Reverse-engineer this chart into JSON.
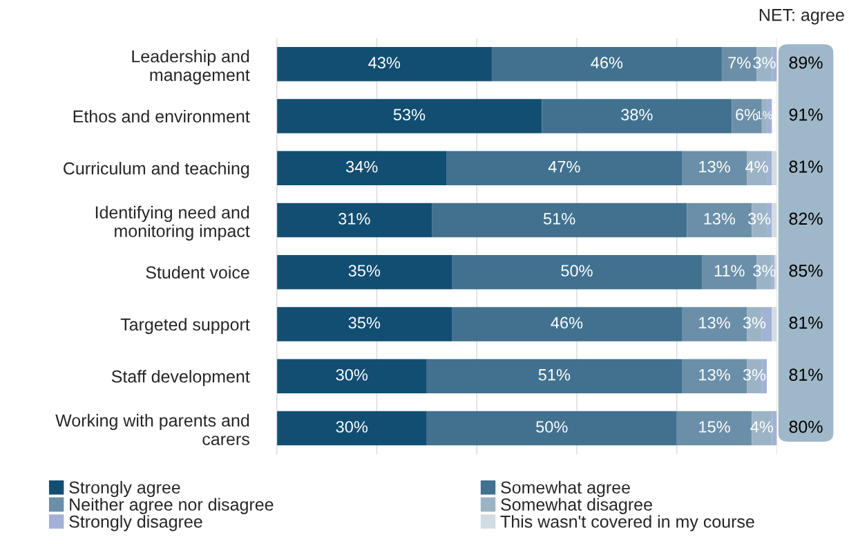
{
  "chart_data": {
    "type": "bar",
    "orientation": "horizontal",
    "stacked": true,
    "categories": [
      "Leadership and\nmanagement",
      "Ethos and environment",
      "Curriculum and teaching",
      "Identifying need and\nmonitoring impact",
      "Student voice",
      "Targeted support",
      "Staff development",
      "Working with parents and\ncarers"
    ],
    "series": [
      {
        "name": "Strongly agree",
        "color": "#124e72",
        "values": [
          43,
          53,
          34,
          31,
          35,
          35,
          30,
          30
        ],
        "value_labels": [
          "43%",
          "53%",
          "34%",
          "31%",
          "35%",
          "35%",
          "30%",
          "30%"
        ]
      },
      {
        "name": "Somewhat agree",
        "color": "#41718f",
        "values": [
          46,
          38,
          47,
          51,
          50,
          46,
          51,
          50
        ],
        "value_labels": [
          "46%",
          "38%",
          "47%",
          "51%",
          "50%",
          "46%",
          "51%",
          "50%"
        ]
      },
      {
        "name": "Neither agree nor disagree",
        "color": "#6b8fa8",
        "values": [
          7,
          6,
          13,
          13,
          11,
          13,
          13,
          15
        ],
        "value_labels": [
          "7%",
          "6%",
          "13%",
          "13%",
          "11%",
          "13%",
          "13%",
          "15%"
        ]
      },
      {
        "name": "Somewhat disagree",
        "color": "#9bb4c5",
        "values": [
          3,
          1,
          4,
          3,
          3,
          3,
          3,
          4
        ],
        "value_labels": [
          "3%",
          "1%",
          "4%",
          "3%",
          "3%",
          "3%",
          "3%",
          "4%"
        ]
      },
      {
        "name": "Strongly disagree",
        "color": "#a2b1d6",
        "values": [
          1,
          1,
          1,
          1,
          0.5,
          2,
          1,
          1
        ],
        "value_labels": [
          null,
          null,
          null,
          null,
          null,
          null,
          null,
          null
        ]
      },
      {
        "name": "This wasn't covered in my course",
        "color": "#d1dce3",
        "values": [
          0,
          0,
          1,
          1,
          0.5,
          1,
          0,
          0
        ],
        "value_labels": [
          null,
          null,
          null,
          null,
          null,
          null,
          null,
          null
        ]
      }
    ],
    "xlim": [
      0,
      100
    ],
    "xticks": [
      {
        "value": 0,
        "label": null
      },
      {
        "value": 20,
        "label": null
      },
      {
        "value": 40,
        "label": null
      },
      {
        "value": 60,
        "label": null
      },
      {
        "value": 80,
        "label": null
      },
      {
        "value": 100,
        "label": null
      }
    ],
    "grid": "x",
    "legend": "bottom",
    "annotations": [
      "NET: agree",
      "89%",
      "91%",
      "81%",
      "82%",
      "85%",
      "81%",
      "81%",
      "80%"
    ]
  }
}
